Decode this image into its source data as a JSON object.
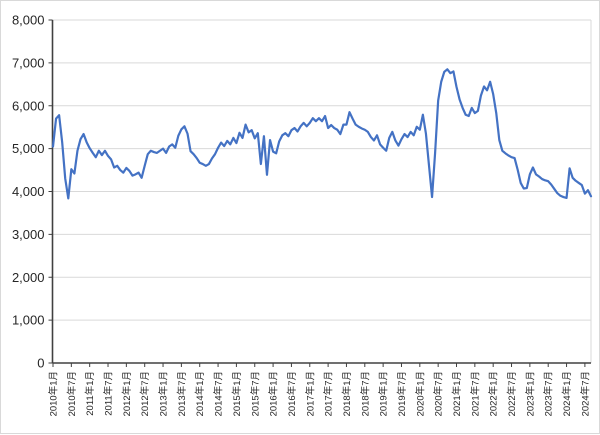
{
  "chart_data": {
    "type": "line",
    "title": "",
    "legend": false,
    "grid": true,
    "x_start": "2010年1月",
    "x_frequency": "monthly",
    "x_tick_interval_months": 6,
    "x_tick_labels": [
      "2010年1月",
      "2010年7月",
      "2011年1月",
      "2011年7月",
      "2012年1月",
      "2012年7月",
      "2013年1月",
      "2013年7月",
      "2014年1月",
      "2014年7月",
      "2015年1月",
      "2015年7月",
      "2016年1月",
      "2016年7月",
      "2017年1月",
      "2017年7月",
      "2018年1月",
      "2018年7月",
      "2019年1月",
      "2019年7月",
      "2020年1月",
      "2020年7月",
      "2021年1月",
      "2021年7月",
      "2022年1月",
      "2022年7月",
      "2023年1月",
      "2023年7月",
      "2024年1月",
      "2024年7月"
    ],
    "y_ticks": [
      0,
      1000,
      2000,
      3000,
      4000,
      5000,
      6000,
      7000,
      8000
    ],
    "ylim": [
      0,
      8000
    ],
    "values": [
      5050,
      5700,
      5780,
      5150,
      4300,
      3840,
      4520,
      4420,
      4950,
      5220,
      5340,
      5150,
      5010,
      4900,
      4800,
      4950,
      4850,
      4950,
      4830,
      4750,
      4560,
      4600,
      4500,
      4440,
      4550,
      4480,
      4370,
      4400,
      4440,
      4320,
      4600,
      4870,
      4950,
      4920,
      4900,
      4950,
      5000,
      4900,
      5050,
      5100,
      5020,
      5300,
      5450,
      5520,
      5350,
      4940,
      4870,
      4780,
      4670,
      4640,
      4600,
      4640,
      4770,
      4870,
      5020,
      5140,
      5060,
      5180,
      5100,
      5250,
      5130,
      5370,
      5250,
      5560,
      5380,
      5430,
      5240,
      5360,
      4640,
      5290,
      4390,
      5200,
      4930,
      4890,
      5170,
      5310,
      5360,
      5290,
      5430,
      5480,
      5400,
      5520,
      5600,
      5520,
      5600,
      5710,
      5640,
      5710,
      5640,
      5760,
      5480,
      5550,
      5480,
      5440,
      5340,
      5560,
      5560,
      5850,
      5700,
      5560,
      5510,
      5470,
      5440,
      5390,
      5270,
      5190,
      5310,
      5100,
      5020,
      4950,
      5250,
      5390,
      5190,
      5070,
      5220,
      5340,
      5270,
      5390,
      5310,
      5510,
      5440,
      5790,
      5350,
      4610,
      3870,
      4900,
      6120,
      6560,
      6790,
      6850,
      6760,
      6800,
      6440,
      6150,
      5950,
      5790,
      5760,
      5950,
      5830,
      5880,
      6240,
      6450,
      6360,
      6560,
      6270,
      5830,
      5200,
      4950,
      4890,
      4840,
      4800,
      4780,
      4510,
      4200,
      4070,
      4080,
      4400,
      4560,
      4400,
      4350,
      4290,
      4260,
      4240,
      4160,
      4060,
      3960,
      3900,
      3870,
      3850,
      4540,
      4320,
      4250,
      4200,
      4150,
      3950,
      4030,
      3890
    ],
    "line_color": "#4472C4",
    "gridline_color": "#d9d9d9",
    "plot_border_color": "#d9d9d9",
    "axis_color": "#404040",
    "label_color": "#262626"
  }
}
